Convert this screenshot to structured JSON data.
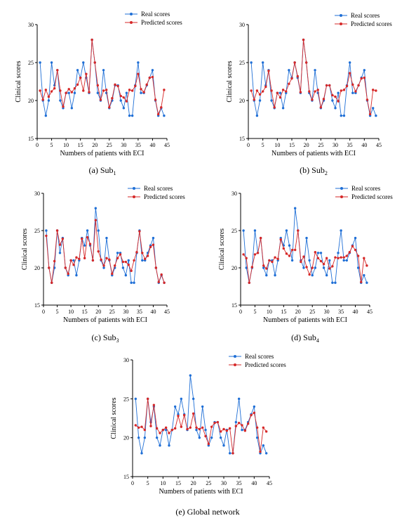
{
  "chart_data": [
    {
      "id": "a",
      "type": "line",
      "caption_main": "(a) Sub",
      "caption_sub": "1",
      "xlabel": "Numbers of patients with ECI",
      "ylabel": "Clinical scores",
      "xlim": [
        0,
        45
      ],
      "ylim": [
        15,
        30
      ],
      "xticks": [
        0,
        5,
        10,
        15,
        20,
        25,
        30,
        35,
        40,
        45
      ],
      "yticks": [
        15,
        20,
        25,
        30
      ],
      "grid": false,
      "legend": "top-right",
      "x": [
        1,
        2,
        3,
        4,
        5,
        6,
        7,
        8,
        9,
        10,
        11,
        12,
        13,
        14,
        15,
        16,
        17,
        18,
        19,
        20,
        21,
        22,
        23,
        24,
        25,
        26,
        27,
        28,
        29,
        30,
        31,
        32,
        33,
        34,
        35,
        36,
        37,
        38,
        39,
        40,
        41,
        42,
        43,
        44
      ],
      "series": [
        {
          "name": "Real scores",
          "color": "#1f6fd6",
          "values": [
            25,
            20,
            18,
            20,
            25,
            22,
            24,
            20,
            19,
            21,
            21,
            19,
            21,
            24,
            23,
            25,
            23,
            21,
            28,
            25,
            21,
            20,
            24,
            21,
            19,
            20,
            22,
            22,
            20,
            19,
            21,
            18,
            18,
            22,
            25,
            21,
            21,
            22,
            23,
            24,
            20,
            18,
            19,
            18
          ]
        },
        {
          "name": "Predicted scores",
          "color": "#d62828",
          "values": [
            21.3,
            20.1,
            21.4,
            20.5,
            21.2,
            21.6,
            24,
            21.3,
            19.2,
            21,
            21.5,
            21.1,
            21.6,
            22.1,
            23,
            21.3,
            23.5,
            21.1,
            28,
            25,
            22,
            20.1,
            21.3,
            21.4,
            19.1,
            20.3,
            22.1,
            21.9,
            20.6,
            20.4,
            19.9,
            21.4,
            21.3,
            21.9,
            23.5,
            21.5,
            21.1,
            22.1,
            23,
            23.1,
            20.1,
            18.2,
            19.1,
            21.4
          ]
        }
      ]
    },
    {
      "id": "b",
      "type": "line",
      "caption_main": "(b) Sub",
      "caption_sub": "2",
      "xlabel": "Numbers of patients with ECI",
      "ylabel": "Clinical scores",
      "xlim": [
        0,
        45
      ],
      "ylim": [
        15,
        30
      ],
      "xticks": [
        0,
        5,
        10,
        15,
        20,
        25,
        30,
        35,
        40,
        45
      ],
      "yticks": [
        15,
        20,
        25,
        30
      ],
      "grid": false,
      "legend": "top-right",
      "x": [
        1,
        2,
        3,
        4,
        5,
        6,
        7,
        8,
        9,
        10,
        11,
        12,
        13,
        14,
        15,
        16,
        17,
        18,
        19,
        20,
        21,
        22,
        23,
        24,
        25,
        26,
        27,
        28,
        29,
        30,
        31,
        32,
        33,
        34,
        35,
        36,
        37,
        38,
        39,
        40,
        41,
        42,
        43,
        44
      ],
      "series": [
        {
          "name": "Real scores",
          "color": "#1f6fd6",
          "values": [
            25,
            20,
            18,
            20,
            25,
            22,
            24,
            20,
            19,
            21,
            21,
            19,
            21,
            24,
            23,
            25,
            23,
            21,
            28,
            25,
            21,
            20,
            24,
            21,
            19,
            20,
            22,
            22,
            20,
            19,
            21,
            18,
            18,
            22,
            25,
            21,
            21,
            22,
            23,
            24,
            20,
            18,
            19,
            18
          ]
        },
        {
          "name": "Predicted scores",
          "color": "#d62828",
          "values": [
            21.3,
            20.1,
            21.3,
            20.8,
            21.2,
            21.8,
            23.9,
            21.3,
            19.1,
            21,
            20.4,
            21.4,
            21.2,
            22.2,
            22.9,
            25,
            23.2,
            21.1,
            28,
            25,
            21.2,
            20.1,
            21.2,
            21.4,
            19.1,
            20.2,
            22,
            22,
            20.7,
            20.5,
            19.9,
            21.3,
            21.4,
            21.9,
            23.6,
            22.1,
            21.2,
            22,
            22.9,
            23,
            20.1,
            18.2,
            21.4,
            21.3
          ]
        }
      ]
    },
    {
      "id": "c",
      "type": "line",
      "caption_main": "(c) Sub",
      "caption_sub": "3",
      "xlabel": "Numbers of patients with ECI",
      "ylabel": "Clinical scores",
      "xlim": [
        0,
        45
      ],
      "ylim": [
        15,
        30
      ],
      "xticks": [
        0,
        5,
        10,
        15,
        20,
        25,
        30,
        35,
        40,
        45
      ],
      "yticks": [
        15,
        20,
        25,
        30
      ],
      "grid": false,
      "legend": "top-right",
      "x": [
        1,
        2,
        3,
        4,
        5,
        6,
        7,
        8,
        9,
        10,
        11,
        12,
        13,
        14,
        15,
        16,
        17,
        18,
        19,
        20,
        21,
        22,
        23,
        24,
        25,
        26,
        27,
        28,
        29,
        30,
        31,
        32,
        33,
        34,
        35,
        36,
        37,
        38,
        39,
        40,
        41,
        42,
        43,
        44
      ],
      "series": [
        {
          "name": "Real scores",
          "color": "#1f6fd6",
          "values": [
            25,
            20,
            18,
            20,
            25,
            22,
            24,
            20,
            19,
            21,
            21,
            19,
            21,
            24,
            23,
            25,
            23,
            21,
            28,
            25,
            21,
            20,
            24,
            21,
            19,
            20,
            22,
            22,
            20,
            19,
            21,
            18,
            18,
            22,
            25,
            21,
            21,
            22,
            23,
            24,
            20,
            18,
            19,
            18
          ]
        },
        {
          "name": "Predicted scores",
          "color": "#d62828",
          "values": [
            24.3,
            20,
            18,
            20.9,
            25,
            23.1,
            23.9,
            20,
            19.2,
            21,
            20.4,
            21.4,
            21.2,
            23.9,
            21.3,
            24.1,
            23.2,
            21,
            26.4,
            22.2,
            21.1,
            20.3,
            21.3,
            21.1,
            19.2,
            20.3,
            21.3,
            21.8,
            20.8,
            20.8,
            20.4,
            19.6,
            21,
            22.1,
            24.9,
            22,
            21.2,
            21.6,
            22.8,
            23.1,
            20,
            18.1,
            19.1,
            18
          ]
        }
      ]
    },
    {
      "id": "d",
      "type": "line",
      "caption_main": "(d) Sub",
      "caption_sub": "4",
      "xlabel": "Numbers of patients with ECI",
      "ylabel": "Clinical scores",
      "xlim": [
        0,
        45
      ],
      "ylim": [
        15,
        30
      ],
      "xticks": [
        0,
        5,
        10,
        15,
        20,
        25,
        30,
        35,
        40,
        45
      ],
      "yticks": [
        15,
        20,
        25,
        30
      ],
      "grid": false,
      "legend": "top-right",
      "x": [
        1,
        2,
        3,
        4,
        5,
        6,
        7,
        8,
        9,
        10,
        11,
        12,
        13,
        14,
        15,
        16,
        17,
        18,
        19,
        20,
        21,
        22,
        23,
        24,
        25,
        26,
        27,
        28,
        29,
        30,
        31,
        32,
        33,
        34,
        35,
        36,
        37,
        38,
        39,
        40,
        41,
        42,
        43,
        44
      ],
      "series": [
        {
          "name": "Real scores",
          "color": "#1f6fd6",
          "values": [
            25,
            20,
            18,
            20,
            25,
            22,
            24,
            20,
            19,
            21,
            21,
            19,
            21,
            24,
            23,
            25,
            23,
            21,
            28,
            25,
            21,
            20,
            24,
            21,
            19,
            20,
            22,
            22,
            20,
            19,
            21,
            18,
            18,
            22,
            25,
            21,
            21,
            22,
            23,
            24,
            20,
            18,
            19,
            18
          ]
        },
        {
          "name": "Predicted scores",
          "color": "#d62828",
          "values": [
            21.8,
            21.3,
            18,
            20.1,
            21.8,
            22,
            24,
            20.3,
            19.9,
            21,
            20.8,
            21.4,
            21.2,
            23.8,
            22.6,
            21.9,
            21.6,
            22.4,
            22.4,
            25,
            20.8,
            21.5,
            20.1,
            19.1,
            20,
            22.1,
            21.3,
            20.9,
            20.5,
            21.3,
            19.9,
            20.2,
            21.4,
            21.3,
            21.4,
            21.4,
            21.6,
            22.1,
            22.9,
            22.4,
            21.6,
            18.1,
            21.3,
            20.3
          ]
        }
      ]
    },
    {
      "id": "e",
      "type": "line",
      "caption_main": "(e) Global network",
      "caption_sub": "",
      "xlabel": "Numbers of patients with ECI",
      "ylabel": "Clinical scores",
      "xlim": [
        0,
        45
      ],
      "ylim": [
        15,
        30
      ],
      "xticks": [
        0,
        5,
        10,
        15,
        20,
        25,
        30,
        35,
        40,
        45
      ],
      "yticks": [
        15,
        20,
        25,
        30
      ],
      "grid": false,
      "legend": "top-right",
      "x": [
        1,
        2,
        3,
        4,
        5,
        6,
        7,
        8,
        9,
        10,
        11,
        12,
        13,
        14,
        15,
        16,
        17,
        18,
        19,
        20,
        21,
        22,
        23,
        24,
        25,
        26,
        27,
        28,
        29,
        30,
        31,
        32,
        33,
        34,
        35,
        36,
        37,
        38,
        39,
        40,
        41,
        42,
        43,
        44
      ],
      "series": [
        {
          "name": "Real scores",
          "color": "#1f6fd6",
          "values": [
            25,
            20,
            18,
            20,
            25,
            22,
            24,
            20,
            19,
            21,
            21,
            19,
            21,
            24,
            23,
            25,
            23,
            21,
            28,
            25,
            21,
            20,
            24,
            21,
            19,
            20,
            22,
            22,
            20,
            19,
            21,
            18,
            18,
            22,
            25,
            21,
            21,
            22,
            23,
            24,
            20,
            18,
            19,
            18
          ]
        },
        {
          "name": "Predicted scores",
          "color": "#d62828",
          "values": [
            21.6,
            21.3,
            21.4,
            21,
            25,
            21.5,
            24.2,
            21.2,
            20.6,
            21,
            21.3,
            20.6,
            21,
            21.2,
            22.8,
            21.4,
            22.9,
            21.1,
            21.3,
            23.1,
            21.3,
            21.1,
            21.3,
            20.2,
            19.2,
            21.4,
            21.9,
            22,
            20.8,
            21.1,
            20.9,
            21.2,
            18,
            21.5,
            21.9,
            21.6,
            20.9,
            21.8,
            22.9,
            23.2,
            21.3,
            18.2,
            21.3,
            20.8
          ]
        }
      ]
    }
  ]
}
